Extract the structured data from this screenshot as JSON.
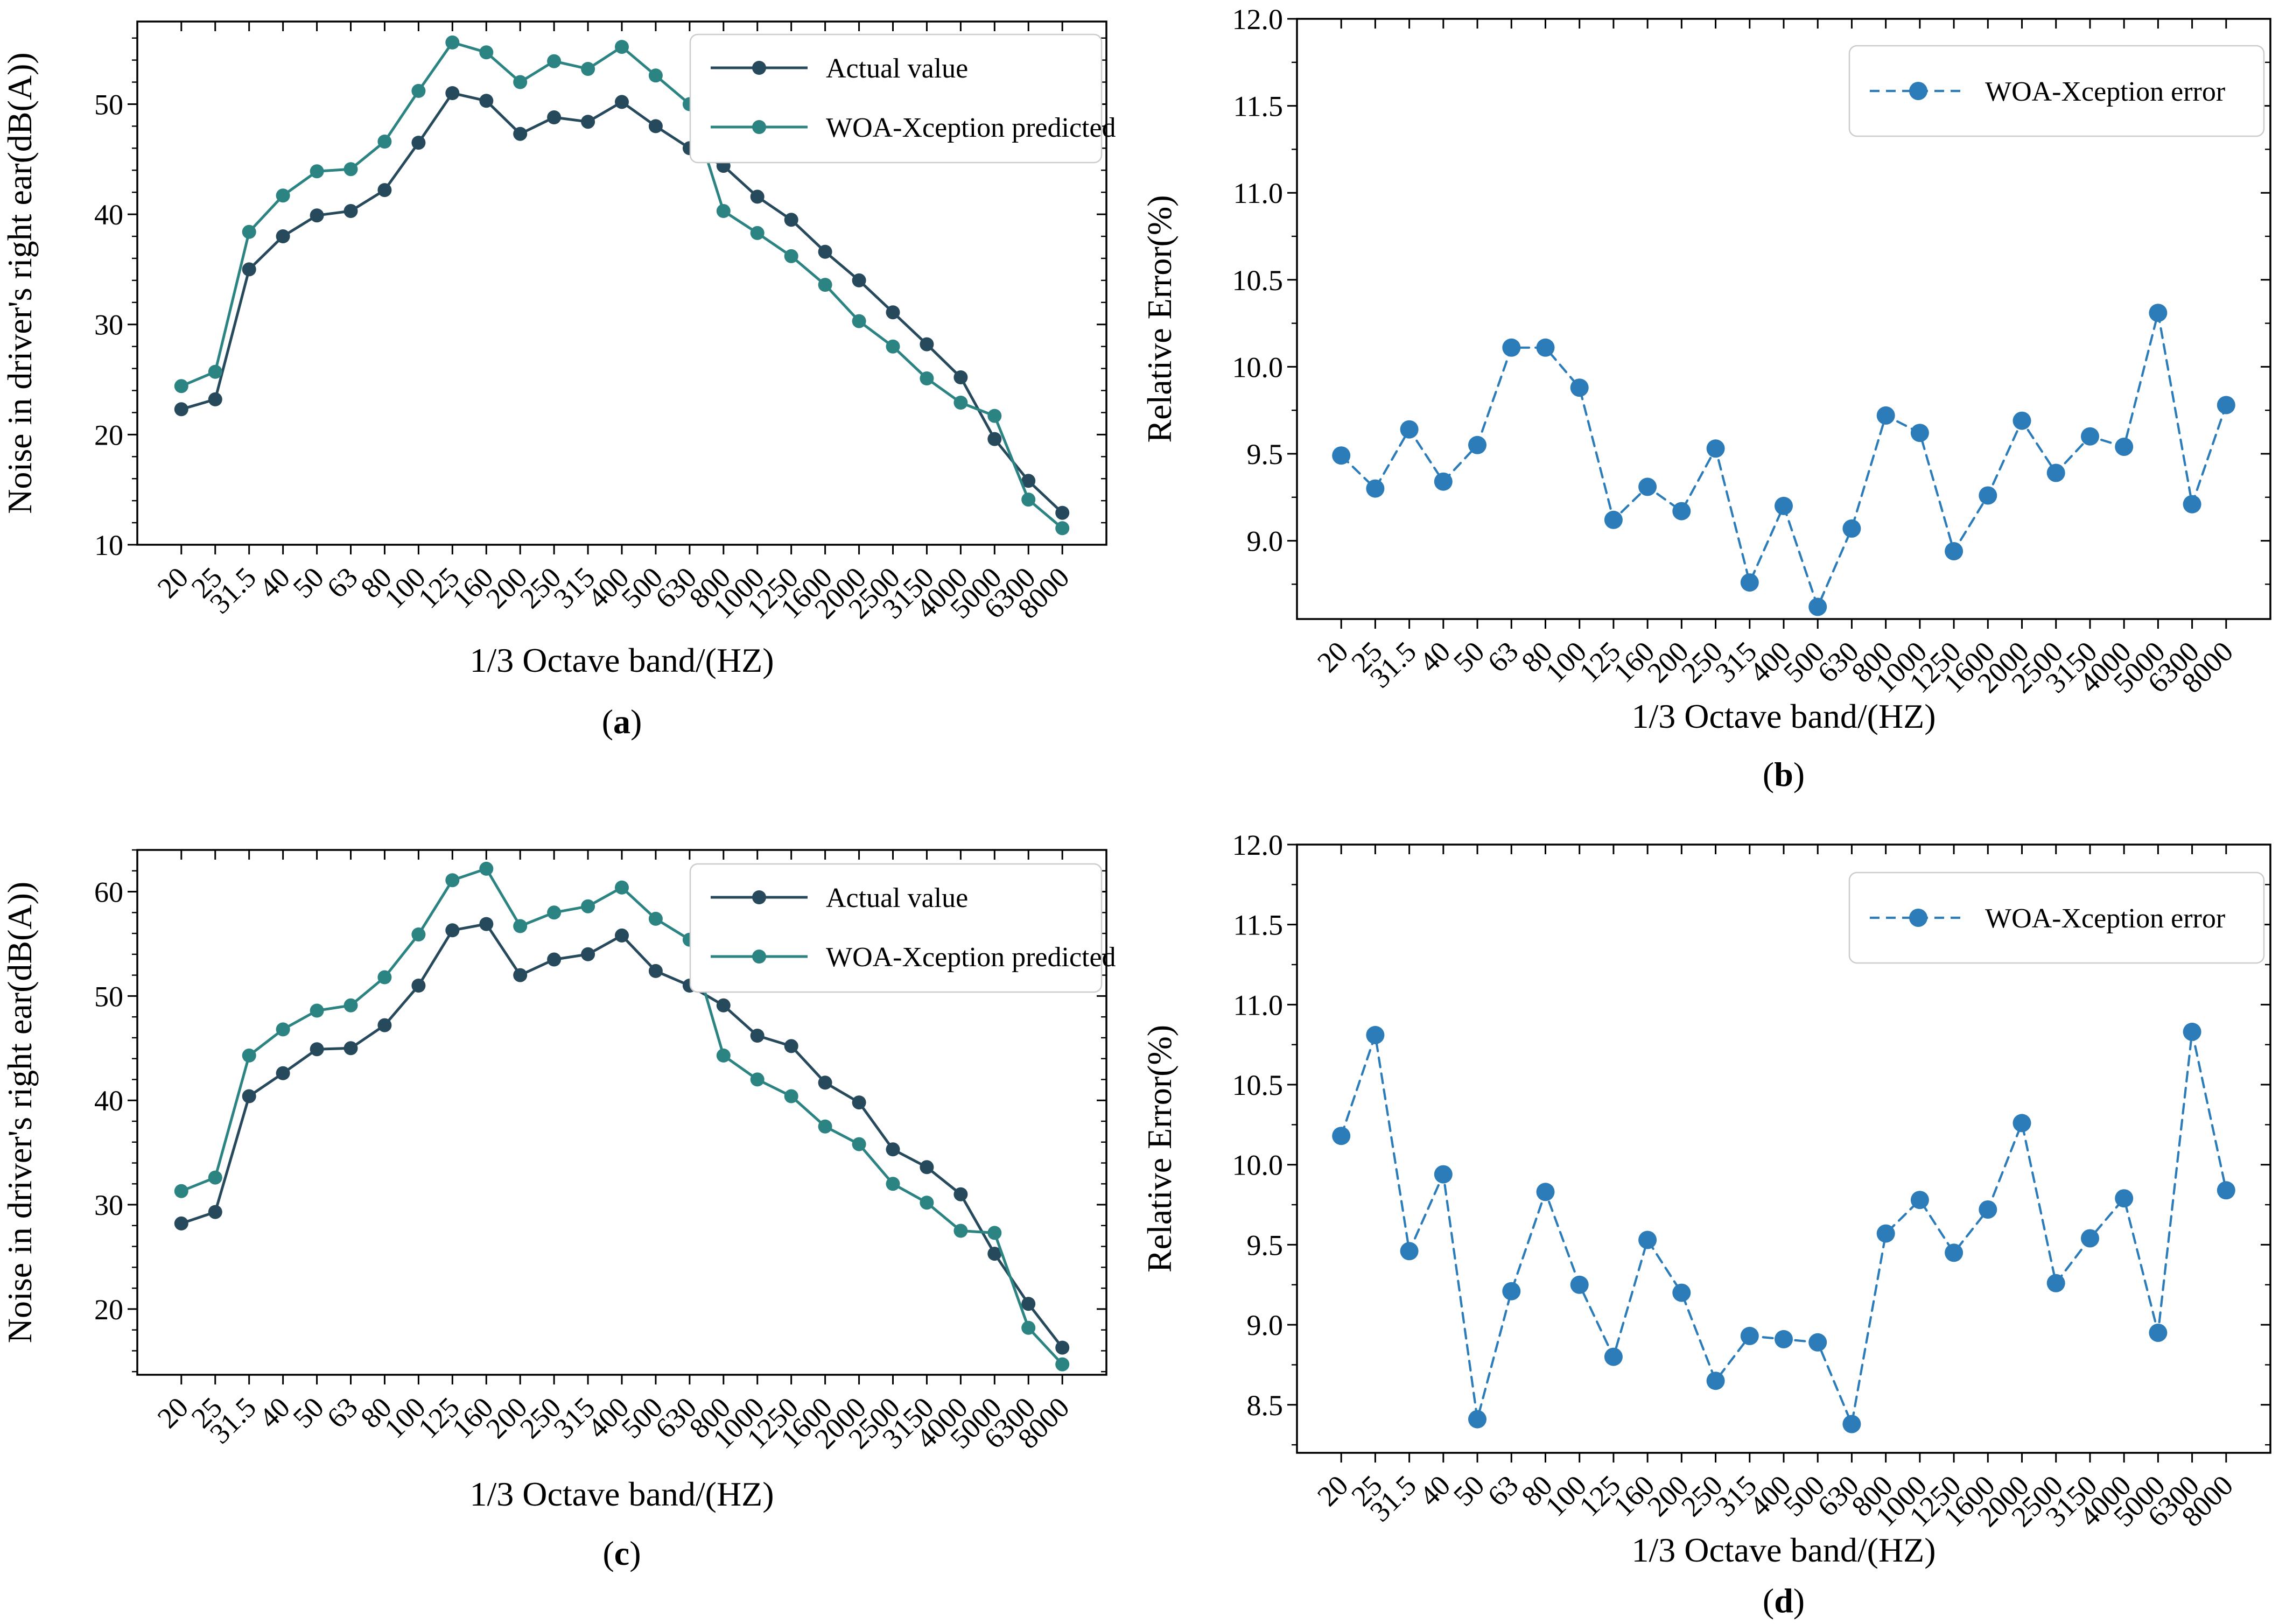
{
  "figure": {
    "xlabel": "1/3 Octave band/(HZ)",
    "noise_ylabel": "Noise in driver's right ear(dB(A))",
    "error_ylabel": "Relative Error(%)",
    "colors": {
      "actual": "#27495c",
      "predicted": "#2b8382",
      "error": "#2b7cb8",
      "axis": "#000000",
      "legend_border": "#cccccc",
      "background": "#ffffff"
    },
    "legend_labels": {
      "actual": "Actual value",
      "predicted": "WOA-Xception predicted",
      "error": "WOA-Xception error"
    }
  },
  "chart_data": [
    {
      "id": "a",
      "type": "line",
      "caption": "a",
      "xlabel": "1/3 Octave band/(HZ)",
      "ylabel": "Noise in driver's right ear(dB(A))",
      "legend_position": "top-right",
      "grid": false,
      "categories": [
        "20",
        "25",
        "31.5",
        "40",
        "50",
        "63",
        "80",
        "100",
        "125",
        "160",
        "200",
        "250",
        "315",
        "400",
        "500",
        "630",
        "800",
        "1000",
        "1250",
        "1600",
        "2000",
        "2500",
        "3150",
        "4000",
        "5000",
        "6300",
        "8000"
      ],
      "ylim": [
        10,
        57.5
      ],
      "yticks": [
        10,
        20,
        30,
        40,
        50
      ],
      "ytick_labels": [
        "10",
        "20",
        "30",
        "40",
        "50"
      ],
      "minor_step": 2,
      "series": [
        {
          "name": "Actual value",
          "color": "#27495c",
          "dashed": false,
          "values": [
            22.3,
            23.2,
            35.0,
            38.0,
            39.9,
            40.3,
            42.2,
            46.5,
            51.0,
            50.3,
            47.3,
            48.8,
            48.4,
            50.2,
            48.0,
            46.0,
            44.4,
            41.6,
            39.5,
            36.6,
            34.0,
            31.1,
            28.2,
            25.2,
            19.6,
            15.8,
            12.9
          ]
        },
        {
          "name": "WOA-Xception predicted",
          "color": "#2b8382",
          "dashed": false,
          "values": [
            24.4,
            25.7,
            38.4,
            41.7,
            43.9,
            44.1,
            46.6,
            51.2,
            55.6,
            54.7,
            52.0,
            53.9,
            53.2,
            55.2,
            52.6,
            50.0,
            40.3,
            38.3,
            36.2,
            33.6,
            30.3,
            28.0,
            25.1,
            22.9,
            21.7,
            14.1,
            11.5
          ]
        }
      ]
    },
    {
      "id": "b",
      "type": "line",
      "caption": "b",
      "xlabel": "1/3 Octave band/(HZ)",
      "ylabel": "Relative Error(%)",
      "legend_position": "top-right",
      "grid": false,
      "categories": [
        "20",
        "25",
        "31.5",
        "40",
        "50",
        "63",
        "80",
        "100",
        "125",
        "160",
        "200",
        "250",
        "315",
        "400",
        "500",
        "630",
        "800",
        "1000",
        "1250",
        "1600",
        "2000",
        "2500",
        "3150",
        "4000",
        "5000",
        "6300",
        "8000"
      ],
      "ylim": [
        8.55,
        12.0
      ],
      "yticks": [
        9.0,
        9.5,
        10.0,
        10.5,
        11.0,
        11.5,
        12.0
      ],
      "ytick_labels": [
        "9.0",
        "9.5",
        "10.0",
        "10.5",
        "11.0",
        "11.5",
        "12.0"
      ],
      "minor_step": 0.25,
      "series": [
        {
          "name": "WOA-Xception error",
          "color": "#2b7cb8",
          "dashed": true,
          "values": [
            9.49,
            9.3,
            9.64,
            9.34,
            9.55,
            10.11,
            10.11,
            9.88,
            9.12,
            9.31,
            9.17,
            9.53,
            8.76,
            9.2,
            8.62,
            9.07,
            9.72,
            9.62,
            8.94,
            9.26,
            9.69,
            9.39,
            9.6,
            9.54,
            10.31,
            9.21,
            9.78
          ]
        }
      ]
    },
    {
      "id": "c",
      "type": "line",
      "caption": "c",
      "xlabel": "1/3 Octave band/(HZ)",
      "ylabel": "Noise in driver's right ear(dB(A))",
      "legend_position": "top-right",
      "grid": false,
      "categories": [
        "20",
        "25",
        "31.5",
        "40",
        "50",
        "63",
        "80",
        "100",
        "125",
        "160",
        "200",
        "250",
        "315",
        "400",
        "500",
        "630",
        "800",
        "1000",
        "1250",
        "1600",
        "2000",
        "2500",
        "3150",
        "4000",
        "5000",
        "6300",
        "8000"
      ],
      "ylim": [
        13.7,
        64.0
      ],
      "yticks": [
        20,
        30,
        40,
        50,
        60
      ],
      "ytick_labels": [
        "20",
        "30",
        "40",
        "50",
        "60"
      ],
      "minor_step": 2,
      "series": [
        {
          "name": "Actual value",
          "color": "#27495c",
          "dashed": false,
          "values": [
            28.2,
            29.3,
            40.4,
            42.6,
            44.9,
            45.0,
            47.2,
            51.0,
            56.3,
            56.9,
            52.0,
            53.5,
            54.0,
            55.8,
            52.4,
            51.0,
            49.1,
            46.2,
            45.2,
            41.7,
            39.8,
            35.3,
            33.6,
            31.0,
            25.3,
            20.5,
            16.3
          ]
        },
        {
          "name": "WOA-Xception predicted",
          "color": "#2b8382",
          "dashed": false,
          "values": [
            31.3,
            32.6,
            44.3,
            46.8,
            48.6,
            49.1,
            51.8,
            55.9,
            61.1,
            62.2,
            56.7,
            58.0,
            58.6,
            60.4,
            57.4,
            55.4,
            44.3,
            42.0,
            40.4,
            37.5,
            35.8,
            32.0,
            30.2,
            27.5,
            27.3,
            18.2,
            14.7
          ]
        }
      ]
    },
    {
      "id": "d",
      "type": "line",
      "caption": "d",
      "xlabel": "1/3 Octave band/(HZ)",
      "ylabel": "Relative Error(%)",
      "legend_position": "top-right",
      "grid": false,
      "categories": [
        "20",
        "25",
        "31.5",
        "40",
        "50",
        "63",
        "80",
        "100",
        "125",
        "160",
        "200",
        "250",
        "315",
        "400",
        "500",
        "630",
        "800",
        "1000",
        "1250",
        "1600",
        "2000",
        "2500",
        "3150",
        "4000",
        "5000",
        "6300",
        "8000"
      ],
      "ylim": [
        8.2,
        12.0
      ],
      "yticks": [
        8.5,
        9.0,
        9.5,
        10.0,
        10.5,
        11.0,
        11.5,
        12.0
      ],
      "ytick_labels": [
        "8.5",
        "9.0",
        "9.5",
        "10.0",
        "10.5",
        "11.0",
        "11.5",
        "12.0"
      ],
      "minor_step": 0.25,
      "series": [
        {
          "name": "WOA-Xception error",
          "color": "#2b7cb8",
          "dashed": true,
          "values": [
            10.18,
            10.81,
            9.46,
            9.94,
            8.41,
            9.21,
            9.83,
            9.25,
            8.8,
            9.53,
            9.2,
            8.65,
            8.93,
            8.91,
            8.89,
            8.38,
            9.57,
            9.78,
            9.45,
            9.72,
            10.26,
            9.26,
            9.54,
            9.79,
            8.95,
            10.83,
            9.84
          ]
        }
      ]
    }
  ]
}
